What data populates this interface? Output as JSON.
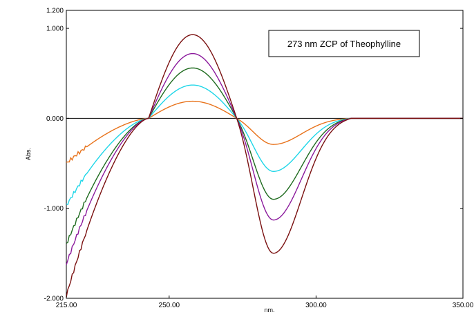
{
  "chart_data": {
    "type": "line",
    "title": "",
    "xlabel": "nm.",
    "ylabel": "Abs.",
    "xlim": [
      215,
      350
    ],
    "ylim": [
      -2.0,
      1.2
    ],
    "x_ticks": [
      215,
      250,
      300,
      350
    ],
    "x_tick_labels": [
      "215.00",
      "250.00",
      "300.00",
      "350.00"
    ],
    "y_ticks": [
      -2.0,
      -1.0,
      0.0,
      1.0,
      1.2
    ],
    "y_tick_labels": [
      "-2.000",
      "-1.000",
      "0.000",
      "1.000",
      "1.200"
    ],
    "grid": false,
    "zero_line": true,
    "annotation": "273 nm ZCP of Theophylline",
    "annotation_position": "top-right",
    "zero_crossings": [
      243,
      273,
      312
    ],
    "series": [
      {
        "color": "#e8731c",
        "peak": 0.19,
        "trough": -0.29,
        "low_end": -0.5
      },
      {
        "color": "#1ed6e8",
        "peak": 0.37,
        "trough": -0.59,
        "low_end": -0.97
      },
      {
        "color": "#1f6b1f",
        "peak": 0.56,
        "trough": -0.9,
        "low_end": -1.4
      },
      {
        "color": "#8b1a9c",
        "peak": 0.72,
        "trough": -1.13,
        "low_end": -1.62
      },
      {
        "color": "#7a1010",
        "peak": 0.93,
        "trough": -1.5,
        "low_end": -1.97
      }
    ]
  }
}
